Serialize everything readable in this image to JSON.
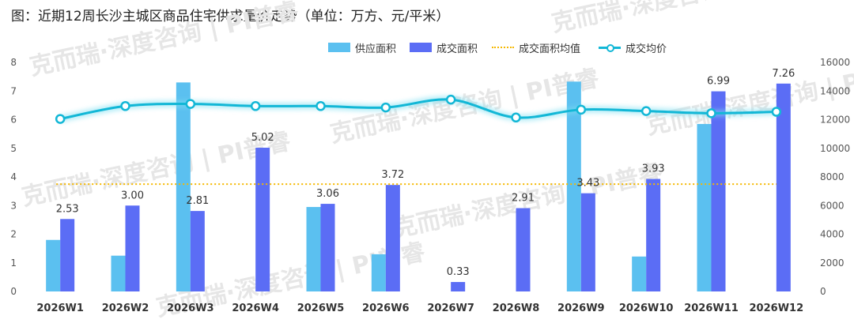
{
  "title": "图：近期12周长沙主城区商品住宅供求量价走势（单位：万方、元/平米）",
  "watermark": "克而瑞·深度咨询 | PI普睿",
  "colors": {
    "supply": "#5bc0f0",
    "deal": "#5b6df5",
    "avg_area": "#f5b800",
    "avg_price": "#12b7d6"
  },
  "chart_data": {
    "type": "bar",
    "categories": [
      "2026W1",
      "2026W2",
      "2026W3",
      "2026W4",
      "2026W5",
      "2026W6",
      "2026W7",
      "2026W8",
      "2026W9",
      "2026W10",
      "2026W11",
      "2026W12"
    ],
    "series": [
      {
        "name": "供应面积",
        "axis": "left",
        "kind": "bar",
        "values": [
          1.8,
          1.25,
          7.3,
          0,
          2.95,
          1.3,
          0,
          0,
          7.33,
          1.22,
          5.85,
          0
        ]
      },
      {
        "name": "成交面积",
        "axis": "left",
        "kind": "bar",
        "values": [
          2.53,
          3.0,
          2.81,
          5.02,
          3.06,
          3.72,
          0.33,
          2.91,
          3.43,
          3.93,
          6.99,
          7.26
        ],
        "labels": [
          "2.53",
          "3.00",
          "2.81",
          "5.02",
          "3.06",
          "3.72",
          "0.33",
          "2.91",
          "3.43",
          "3.93",
          "6.99",
          "7.26"
        ]
      },
      {
        "name": "成交面积均值",
        "axis": "left",
        "kind": "dotted-line",
        "values": [
          3.75,
          3.75,
          3.75,
          3.75,
          3.75,
          3.75,
          3.75,
          3.75,
          3.75,
          3.75,
          3.75,
          3.75
        ]
      },
      {
        "name": "成交均价",
        "axis": "right",
        "kind": "line",
        "values": [
          12050,
          12950,
          13100,
          12950,
          12950,
          12850,
          13400,
          12150,
          12700,
          12600,
          12450,
          12550
        ]
      }
    ],
    "y_left": {
      "min": 0,
      "max": 8,
      "ticks": [
        "0",
        "1",
        "2",
        "3",
        "4",
        "5",
        "6",
        "7",
        "8"
      ]
    },
    "y_right": {
      "min": 0,
      "max": 16000,
      "ticks": [
        "0",
        "2000",
        "4000",
        "6000",
        "8000",
        "10000",
        "12000",
        "14000",
        "16000"
      ]
    },
    "legend": [
      "供应面积",
      "成交面积",
      "成交面积均值",
      "成交均价"
    ],
    "legend_position": "top"
  }
}
